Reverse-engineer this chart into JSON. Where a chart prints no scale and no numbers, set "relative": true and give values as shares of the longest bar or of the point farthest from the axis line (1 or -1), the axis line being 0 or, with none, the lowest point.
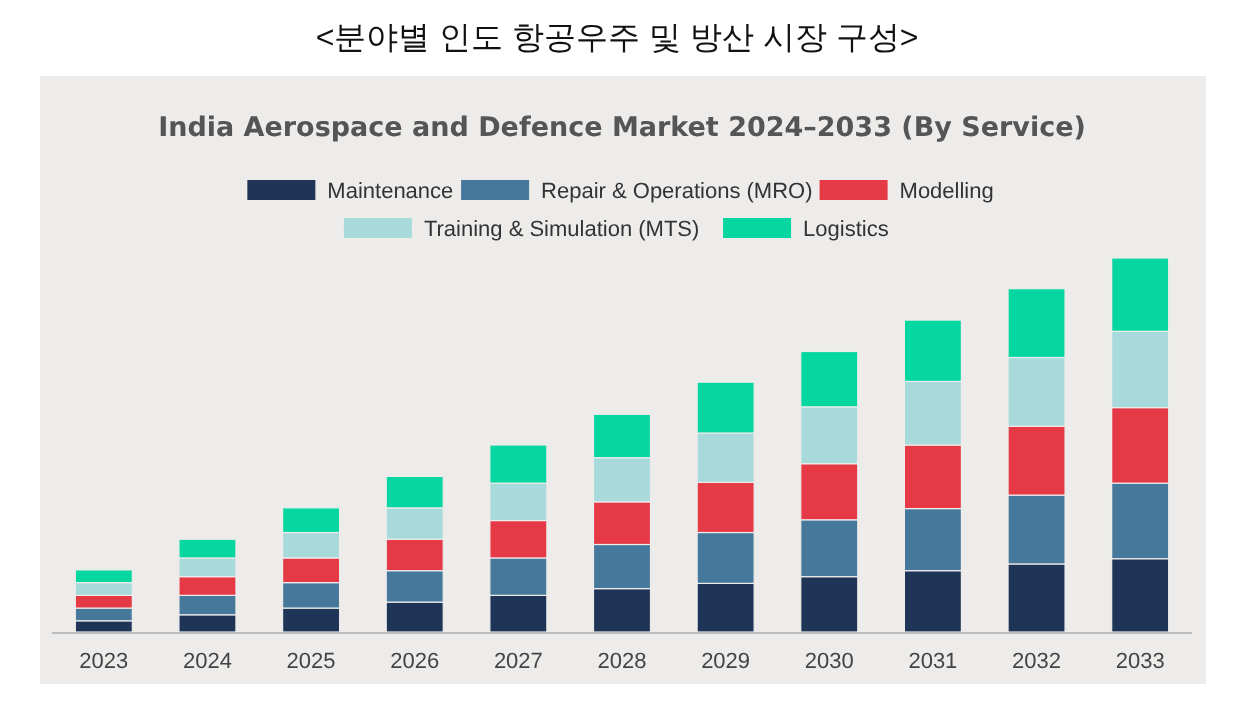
{
  "chart_data": {
    "type": "bar",
    "stacked": true,
    "relative": true,
    "legend": "top",
    "title": "<분야별 인도 항공우주 및 방산 시장 구성>",
    "subtitle": "India Aerospace and Defence Market 2024–2033 (By Service)",
    "categories": [
      "2023",
      "2024",
      "2025",
      "2026",
      "2027",
      "2028",
      "2029",
      "2030",
      "2031",
      "2032",
      "2033"
    ],
    "series": [
      {
        "name": "Maintenance",
        "color": "#1e3557",
        "values": [
          0.03,
          0.046,
          0.064,
          0.08,
          0.098,
          0.116,
          0.13,
          0.148,
          0.164,
          0.182,
          0.196
        ]
      },
      {
        "name": "Repair & Operations (MRO)",
        "color": "#45789a",
        "values": [
          0.034,
          0.052,
          0.068,
          0.084,
          0.1,
          0.118,
          0.136,
          0.152,
          0.166,
          0.184,
          0.202
        ]
      },
      {
        "name": "Modelling",
        "color": "#e63946",
        "values": [
          0.034,
          0.05,
          0.066,
          0.084,
          0.1,
          0.114,
          0.134,
          0.15,
          0.17,
          0.184,
          0.202
        ]
      },
      {
        "name": "Training & Simulation (MTS)",
        "color": "#a8dadc",
        "values": [
          0.034,
          0.05,
          0.068,
          0.084,
          0.1,
          0.118,
          0.132,
          0.152,
          0.17,
          0.184,
          0.204
        ]
      },
      {
        "name": "Logistics",
        "color": "#06d6a0",
        "values": [
          0.034,
          0.05,
          0.066,
          0.084,
          0.102,
          0.116,
          0.136,
          0.148,
          0.164,
          0.184,
          0.196
        ]
      }
    ]
  }
}
